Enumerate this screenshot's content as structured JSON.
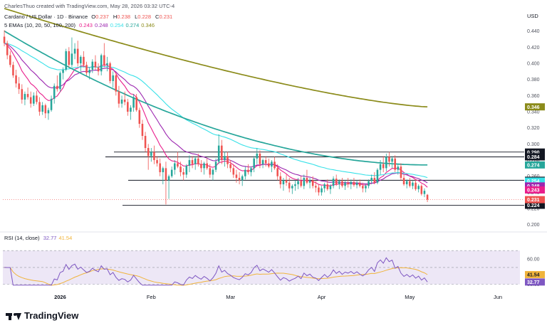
{
  "header": {
    "attribution": "CharlesThuo created with TradingView.com, May 28, 2026 03:32 UTC-4",
    "symbol": "Cardano / US Dollar · 1D · Binance",
    "ohlc": [
      {
        "k": "O",
        "v": "0.237"
      },
      {
        "k": "H",
        "v": "0.238"
      },
      {
        "k": "L",
        "v": "0.228"
      },
      {
        "k": "C",
        "v": "0.231"
      }
    ],
    "ema_label": "5 EMAs (10, 20, 50, 100, 200)",
    "ema_values": [
      "0.243",
      "0.248",
      "0.254",
      "0.274",
      "0.346"
    ]
  },
  "rsi_label": "RSI (14, close)",
  "rsi_values": [
    "32.77",
    "41.54"
  ],
  "footer_logo": "TradingView",
  "colors": {
    "up": "#26a69a",
    "down": "#ef5350",
    "ema10": "#e91e8c",
    "ema20": "#9c27b0",
    "ema50": "#38e1e8",
    "ema100": "#26a69a",
    "ema200": "#8b8b1a",
    "rsi": "#7e57c2",
    "rsi_ma": "#f0b43c",
    "last_price": "#ef5350",
    "rsi_band": "#ede7f6"
  },
  "chart_data": [
    {
      "type": "candlestick",
      "title": "Cardano / US Dollar · 1D · Binance",
      "currency": "USD",
      "x_ticks": [
        "2026",
        "Feb",
        "Mar",
        "Apr",
        "May",
        "Jun"
      ],
      "y_ticks": [
        "0.440",
        "0.420",
        "0.400",
        "0.380",
        "0.360",
        "0.340",
        "0.320",
        "0.300",
        "0.280",
        "0.260",
        "0.240",
        "0.220",
        "0.200"
      ],
      "ylim": [
        0.198,
        0.452
      ],
      "candles": [
        [
          0.433,
          0.441,
          0.421,
          0.425
        ],
        [
          0.425,
          0.428,
          0.405,
          0.41
        ],
        [
          0.41,
          0.415,
          0.395,
          0.398
        ],
        [
          0.398,
          0.402,
          0.382,
          0.385
        ],
        [
          0.385,
          0.392,
          0.37,
          0.375
        ],
        [
          0.375,
          0.383,
          0.362,
          0.368
        ],
        [
          0.368,
          0.374,
          0.35,
          0.355
        ],
        [
          0.355,
          0.365,
          0.348,
          0.362
        ],
        [
          0.362,
          0.37,
          0.355,
          0.358
        ],
        [
          0.358,
          0.365,
          0.345,
          0.35
        ],
        [
          0.35,
          0.364,
          0.347,
          0.36
        ],
        [
          0.36,
          0.366,
          0.349,
          0.352
        ],
        [
          0.352,
          0.358,
          0.335,
          0.34
        ],
        [
          0.34,
          0.352,
          0.336,
          0.348
        ],
        [
          0.348,
          0.35,
          0.332,
          0.338
        ],
        [
          0.338,
          0.345,
          0.33,
          0.342
        ],
        [
          0.342,
          0.36,
          0.34,
          0.356
        ],
        [
          0.356,
          0.375,
          0.35,
          0.372
        ],
        [
          0.372,
          0.385,
          0.365,
          0.368
        ],
        [
          0.368,
          0.39,
          0.365,
          0.388
        ],
        [
          0.388,
          0.395,
          0.38,
          0.392
        ],
        [
          0.392,
          0.418,
          0.39,
          0.415
        ],
        [
          0.415,
          0.42,
          0.395,
          0.398
        ],
        [
          0.398,
          0.432,
          0.395,
          0.412
        ],
        [
          0.412,
          0.425,
          0.405,
          0.418
        ],
        [
          0.418,
          0.428,
          0.396,
          0.4
        ],
        [
          0.4,
          0.41,
          0.39,
          0.408
        ],
        [
          0.408,
          0.415,
          0.395,
          0.398
        ],
        [
          0.398,
          0.402,
          0.385,
          0.388
        ],
        [
          0.388,
          0.395,
          0.38,
          0.392
        ],
        [
          0.392,
          0.405,
          0.388,
          0.402
        ],
        [
          0.402,
          0.41,
          0.392,
          0.395
        ],
        [
          0.395,
          0.4,
          0.385,
          0.39
        ],
        [
          0.39,
          0.412,
          0.385,
          0.41
        ],
        [
          0.41,
          0.425,
          0.395,
          0.398
        ],
        [
          0.398,
          0.408,
          0.39,
          0.4
        ],
        [
          0.4,
          0.402,
          0.375,
          0.378
        ],
        [
          0.378,
          0.39,
          0.37,
          0.385
        ],
        [
          0.385,
          0.388,
          0.36,
          0.365
        ],
        [
          0.365,
          0.372,
          0.345,
          0.35
        ],
        [
          0.35,
          0.36,
          0.345,
          0.355
        ],
        [
          0.355,
          0.365,
          0.348,
          0.352
        ],
        [
          0.352,
          0.356,
          0.335,
          0.34
        ],
        [
          0.34,
          0.348,
          0.33,
          0.345
        ],
        [
          0.345,
          0.362,
          0.34,
          0.358
        ],
        [
          0.358,
          0.362,
          0.34,
          0.342
        ],
        [
          0.342,
          0.345,
          0.32,
          0.325
        ],
        [
          0.325,
          0.33,
          0.305,
          0.31
        ],
        [
          0.31,
          0.315,
          0.29,
          0.295
        ],
        [
          0.295,
          0.3,
          0.268,
          0.285
        ],
        [
          0.285,
          0.295,
          0.278,
          0.29
        ],
        [
          0.29,
          0.298,
          0.275,
          0.28
        ],
        [
          0.28,
          0.285,
          0.272,
          0.276
        ],
        [
          0.276,
          0.282,
          0.26,
          0.265
        ],
        [
          0.265,
          0.272,
          0.25,
          0.27
        ],
        [
          0.27,
          0.278,
          0.225,
          0.255
        ],
        [
          0.255,
          0.262,
          0.232,
          0.26
        ],
        [
          0.26,
          0.272,
          0.258,
          0.268
        ],
        [
          0.268,
          0.28,
          0.262,
          0.276
        ],
        [
          0.276,
          0.29,
          0.27,
          0.272
        ],
        [
          0.272,
          0.278,
          0.26,
          0.265
        ],
        [
          0.265,
          0.27,
          0.255,
          0.262
        ],
        [
          0.262,
          0.275,
          0.258,
          0.273
        ],
        [
          0.273,
          0.286,
          0.265,
          0.28
        ],
        [
          0.28,
          0.285,
          0.27,
          0.275
        ],
        [
          0.275,
          0.285,
          0.268,
          0.282
        ],
        [
          0.282,
          0.288,
          0.272,
          0.275
        ],
        [
          0.275,
          0.28,
          0.265,
          0.27
        ],
        [
          0.27,
          0.278,
          0.262,
          0.276
        ],
        [
          0.276,
          0.282,
          0.268,
          0.27
        ],
        [
          0.27,
          0.275,
          0.258,
          0.262
        ],
        [
          0.262,
          0.27,
          0.255,
          0.268
        ],
        [
          0.268,
          0.282,
          0.265,
          0.278
        ],
        [
          0.278,
          0.312,
          0.275,
          0.298
        ],
        [
          0.298,
          0.305,
          0.275,
          0.28
        ],
        [
          0.28,
          0.29,
          0.272,
          0.285
        ],
        [
          0.285,
          0.29,
          0.27,
          0.275
        ],
        [
          0.275,
          0.28,
          0.265,
          0.27
        ],
        [
          0.27,
          0.275,
          0.258,
          0.262
        ],
        [
          0.262,
          0.268,
          0.252,
          0.258
        ],
        [
          0.258,
          0.265,
          0.25,
          0.255
        ],
        [
          0.255,
          0.262,
          0.248,
          0.26
        ],
        [
          0.26,
          0.272,
          0.256,
          0.268
        ],
        [
          0.268,
          0.275,
          0.262,
          0.265
        ],
        [
          0.265,
          0.272,
          0.26,
          0.27
        ],
        [
          0.27,
          0.285,
          0.265,
          0.282
        ],
        [
          0.282,
          0.295,
          0.275,
          0.288
        ],
        [
          0.288,
          0.292,
          0.27,
          0.275
        ],
        [
          0.275,
          0.282,
          0.27,
          0.28
        ],
        [
          0.28,
          0.285,
          0.272,
          0.276
        ],
        [
          0.276,
          0.282,
          0.27,
          0.272
        ],
        [
          0.272,
          0.28,
          0.265,
          0.278
        ],
        [
          0.278,
          0.284,
          0.268,
          0.27
        ],
        [
          0.27,
          0.275,
          0.255,
          0.26
        ],
        [
          0.26,
          0.265,
          0.245,
          0.25
        ],
        [
          0.25,
          0.258,
          0.242,
          0.255
        ],
        [
          0.255,
          0.262,
          0.248,
          0.252
        ],
        [
          0.252,
          0.258,
          0.24,
          0.245
        ],
        [
          0.245,
          0.25,
          0.238,
          0.248
        ],
        [
          0.248,
          0.255,
          0.242,
          0.25
        ],
        [
          0.25,
          0.258,
          0.244,
          0.254
        ],
        [
          0.254,
          0.26,
          0.246,
          0.248
        ],
        [
          0.248,
          0.262,
          0.244,
          0.258
        ],
        [
          0.258,
          0.268,
          0.25,
          0.252
        ],
        [
          0.252,
          0.258,
          0.245,
          0.255
        ],
        [
          0.255,
          0.26,
          0.245,
          0.248
        ],
        [
          0.248,
          0.254,
          0.24,
          0.246
        ],
        [
          0.246,
          0.25,
          0.236,
          0.24
        ],
        [
          0.24,
          0.248,
          0.236,
          0.245
        ],
        [
          0.245,
          0.252,
          0.24,
          0.25
        ],
        [
          0.25,
          0.256,
          0.242,
          0.244
        ],
        [
          0.244,
          0.25,
          0.238,
          0.248
        ],
        [
          0.248,
          0.26,
          0.245,
          0.257
        ],
        [
          0.257,
          0.262,
          0.248,
          0.25
        ],
        [
          0.25,
          0.256,
          0.244,
          0.254
        ],
        [
          0.254,
          0.258,
          0.246,
          0.248
        ],
        [
          0.248,
          0.255,
          0.243,
          0.252
        ],
        [
          0.252,
          0.258,
          0.246,
          0.25
        ],
        [
          0.25,
          0.256,
          0.244,
          0.253
        ],
        [
          0.253,
          0.258,
          0.247,
          0.249
        ],
        [
          0.249,
          0.255,
          0.245,
          0.252
        ],
        [
          0.252,
          0.256,
          0.246,
          0.248
        ],
        [
          0.248,
          0.252,
          0.24,
          0.245
        ],
        [
          0.245,
          0.25,
          0.24,
          0.248
        ],
        [
          0.248,
          0.256,
          0.245,
          0.254
        ],
        [
          0.254,
          0.262,
          0.25,
          0.258
        ],
        [
          0.258,
          0.265,
          0.25,
          0.252
        ],
        [
          0.252,
          0.27,
          0.25,
          0.268
        ],
        [
          0.268,
          0.28,
          0.262,
          0.275
        ],
        [
          0.275,
          0.285,
          0.265,
          0.27
        ],
        [
          0.27,
          0.288,
          0.266,
          0.284
        ],
        [
          0.284,
          0.29,
          0.272,
          0.278
        ],
        [
          0.278,
          0.285,
          0.27,
          0.282
        ],
        [
          0.282,
          0.286,
          0.265,
          0.268
        ],
        [
          0.268,
          0.275,
          0.262,
          0.272
        ],
        [
          0.272,
          0.276,
          0.255,
          0.258
        ],
        [
          0.258,
          0.262,
          0.248,
          0.25
        ],
        [
          0.25,
          0.256,
          0.245,
          0.254
        ],
        [
          0.254,
          0.258,
          0.246,
          0.248
        ],
        [
          0.248,
          0.254,
          0.244,
          0.252
        ],
        [
          0.252,
          0.256,
          0.242,
          0.244
        ],
        [
          0.244,
          0.25,
          0.24,
          0.248
        ],
        [
          0.248,
          0.25,
          0.236,
          0.238
        ],
        [
          0.238,
          0.245,
          0.234,
          0.242
        ],
        [
          0.237,
          0.238,
          0.228,
          0.231
        ]
      ],
      "ema_series": [
        {
          "name": "EMA 10",
          "period": 10,
          "color": "#e91e8c",
          "last": 0.243
        },
        {
          "name": "EMA 20",
          "period": 20,
          "color": "#9c27b0",
          "last": 0.248
        },
        {
          "name": "EMA 50",
          "period": 50,
          "color": "#38e1e8",
          "last": 0.254
        },
        {
          "name": "EMA 100",
          "period": 100,
          "color": "#26a69a",
          "last": 0.274
        },
        {
          "name": "EMA 200",
          "period": 200,
          "color": "#8b8b1a",
          "last": 0.346
        }
      ],
      "horizontal_levels": [
        {
          "value": 0.29,
          "label": "0.290"
        },
        {
          "value": 0.284,
          "label": "0.284"
        },
        {
          "value": 0.255,
          "label": "0.255"
        },
        {
          "value": 0.224,
          "label": "0.224"
        }
      ],
      "price_tags": [
        {
          "value": 0.346,
          "label": "0.346",
          "color": "#8b8b1a"
        },
        {
          "value": 0.274,
          "label": "0.274",
          "color": "#26a69a"
        },
        {
          "value": 0.254,
          "label": "0.254",
          "color": "#38e1e8"
        },
        {
          "value": 0.248,
          "label": "0.248",
          "color": "#9c27b0"
        },
        {
          "value": 0.243,
          "label": "0.243",
          "color": "#e91e8c"
        },
        {
          "value": 0.231,
          "label": "0.231",
          "color": "#ef5350"
        }
      ],
      "last_price": 0.231
    },
    {
      "type": "line",
      "title": "RSI (14, close)",
      "y_ticks": [
        "60.00",
        "30.00"
      ],
      "ylim": [
        28,
        82
      ],
      "band": [
        30,
        70
      ],
      "series": [
        {
          "name": "RSI",
          "color": "#7e57c2",
          "last": 32.77
        },
        {
          "name": "RSI-based MA",
          "color": "#f0b43c",
          "last": 41.54
        }
      ],
      "tags": [
        {
          "value": 41.54,
          "label": "41.54",
          "color": "#f0b43c"
        },
        {
          "value": 32.77,
          "label": "32.77",
          "color": "#7e57c2"
        }
      ]
    }
  ]
}
